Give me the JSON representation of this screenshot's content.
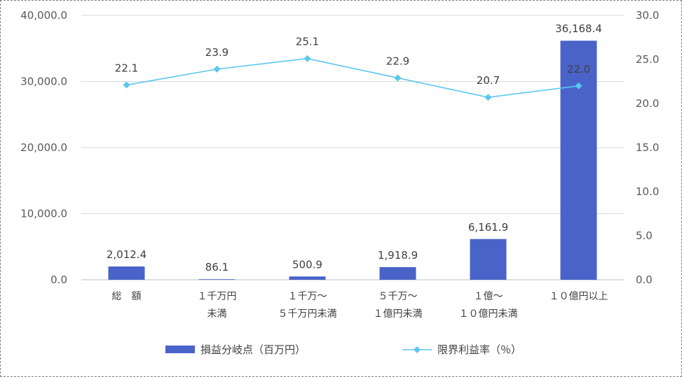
{
  "chart_data": {
    "type": "bar",
    "categories": [
      [
        "総　額"
      ],
      [
        "１千万円",
        "未満"
      ],
      [
        "１千万〜",
        "５千万円未満"
      ],
      [
        "５千万〜",
        "１億円未満"
      ],
      [
        "１億〜",
        "１０億円未満"
      ],
      [
        "１０億円以上"
      ]
    ],
    "series": [
      {
        "name": "損益分岐点（百万円）",
        "type": "bar",
        "axis": "left",
        "values": [
          2012.4,
          86.1,
          500.9,
          1918.9,
          6161.9,
          36168.4
        ],
        "labels": [
          "2,012.4",
          "86.1",
          "500.9",
          "1,918.9",
          "6,161.9",
          "36,168.4"
        ]
      },
      {
        "name": "限界利益率（％）",
        "type": "line",
        "axis": "right",
        "values": [
          22.1,
          23.9,
          25.1,
          22.9,
          20.7,
          22.0
        ],
        "labels": [
          "22.1",
          "23.9",
          "25.1",
          "22.9",
          "20.7",
          "22.0"
        ]
      }
    ],
    "left_axis": {
      "min": 0,
      "max": 40000,
      "ticks": [
        0,
        10000,
        20000,
        30000,
        40000
      ],
      "tick_labels": [
        "0.0",
        "10,000.0",
        "20,000.0",
        "30,000.0",
        "40,000.0"
      ]
    },
    "right_axis": {
      "min": 0,
      "max": 30,
      "ticks": [
        0,
        5,
        10,
        15,
        20,
        25,
        30
      ],
      "tick_labels": [
        "0.0",
        "5.0",
        "10.0",
        "15.0",
        "20.0",
        "25.0",
        "30.0"
      ]
    },
    "grid": true,
    "legend_position": "bottom",
    "colors": {
      "bar": "#4a63c9",
      "line": "#5bc7ec",
      "grid": "#d9d9d9"
    }
  }
}
